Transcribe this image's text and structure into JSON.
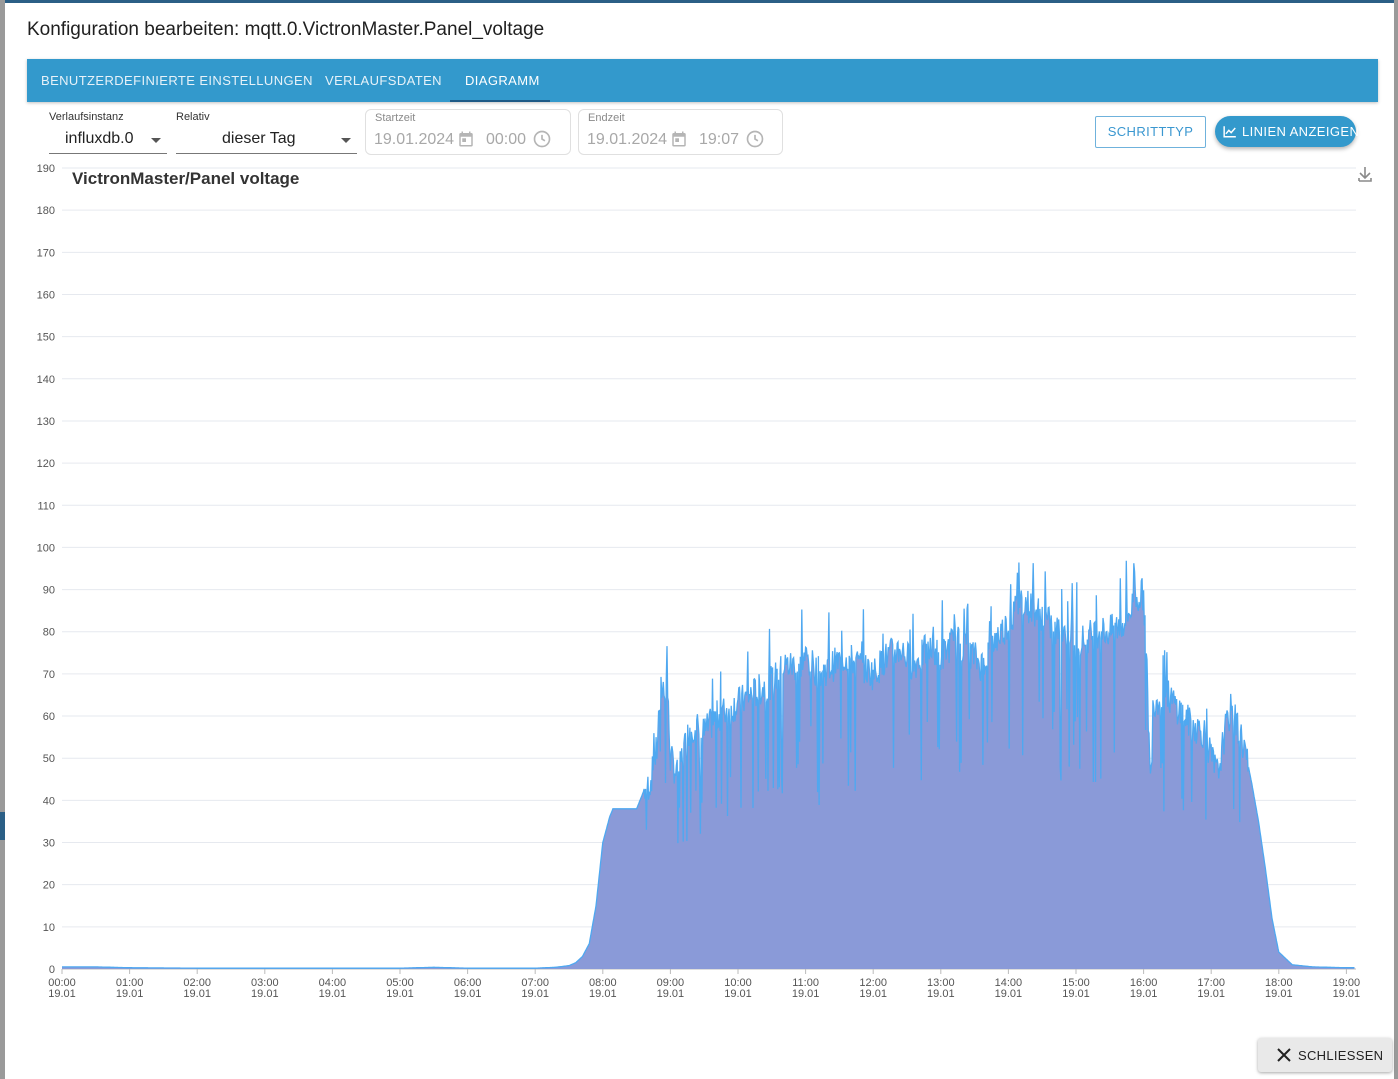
{
  "dialog": {
    "title": "Konfiguration bearbeiten: mqtt.0.VictronMaster.Panel_voltage"
  },
  "tabs": [
    {
      "label": "BENUTZERDEFINIERTE EINSTELLUNGEN",
      "active": false
    },
    {
      "label": "VERLAUFSDATEN",
      "active": false
    },
    {
      "label": "DIAGRAMM",
      "active": true
    }
  ],
  "controls": {
    "instance": {
      "label": "Verlaufsinstanz",
      "value": "influxdb.0"
    },
    "relative": {
      "label": "Relativ",
      "value": "dieser Tag"
    },
    "start": {
      "label": "Startzeit",
      "date": "19.01.2024",
      "time": "00:00"
    },
    "end": {
      "label": "Endzeit",
      "date": "19.01.2024",
      "time": "19:07"
    },
    "font_button": "SCHRITTTYP",
    "lines_button": "LINIEN ANZEIGEN"
  },
  "footer": {
    "close_label": "SCHLIESSEN"
  },
  "colors": {
    "accent": "#3399cc",
    "series_line": "#4fa8f0",
    "series_fill": "#8a9ad8"
  },
  "icons": [
    "calendar-icon",
    "clock-icon",
    "chart-line-icon",
    "download-icon",
    "close-icon",
    "chevron-down-icon"
  ],
  "chart_data": {
    "type": "area",
    "title": "VictronMaster/Panel voltage",
    "xlabel": "",
    "ylabel": "",
    "ylim": [
      0,
      190
    ],
    "y_ticks": [
      0,
      10,
      20,
      30,
      40,
      50,
      60,
      70,
      80,
      90,
      100,
      110,
      120,
      130,
      140,
      150,
      160,
      170,
      180,
      190
    ],
    "x_ticks": [
      {
        "time": "00:00",
        "date": "19.01"
      },
      {
        "time": "01:00",
        "date": "19.01"
      },
      {
        "time": "02:00",
        "date": "19.01"
      },
      {
        "time": "03:00",
        "date": "19.01"
      },
      {
        "time": "04:00",
        "date": "19.01"
      },
      {
        "time": "05:00",
        "date": "19.01"
      },
      {
        "time": "06:00",
        "date": "19.01"
      },
      {
        "time": "07:00",
        "date": "19.01"
      },
      {
        "time": "08:00",
        "date": "19.01"
      },
      {
        "time": "09:00",
        "date": "19.01"
      },
      {
        "time": "10:00",
        "date": "19.01"
      },
      {
        "time": "11:00",
        "date": "19.01"
      },
      {
        "time": "12:00",
        "date": "19.01"
      },
      {
        "time": "13:00",
        "date": "19.01"
      },
      {
        "time": "14:00",
        "date": "19.01"
      },
      {
        "time": "15:00",
        "date": "19.01"
      },
      {
        "time": "16:00",
        "date": "19.01"
      },
      {
        "time": "17:00",
        "date": "19.01"
      },
      {
        "time": "18:00",
        "date": "19.01"
      },
      {
        "time": "19:00",
        "date": "19.01"
      }
    ],
    "x_unit": "hours since 00:00 on 19.01.2024",
    "xlim": [
      0,
      19.12
    ],
    "grid": true,
    "series": [
      {
        "name": "VictronMaster/Panel voltage",
        "x": [
          0,
          0.5,
          1,
          2,
          3,
          4,
          5,
          5.5,
          6,
          7,
          7.3,
          7.5,
          7.6,
          7.7,
          7.8,
          7.9,
          8.0,
          8.1,
          8.15,
          8.2,
          8.3,
          8.5,
          8.6,
          8.7,
          8.8,
          8.85,
          8.95,
          9.0,
          9.1,
          9.2,
          9.3,
          9.5,
          9.7,
          9.9,
          10.1,
          10.3,
          10.5,
          10.7,
          10.9,
          11.0,
          11.2,
          11.4,
          11.6,
          11.8,
          12.0,
          12.2,
          12.4,
          12.6,
          12.8,
          13.0,
          13.2,
          13.4,
          13.6,
          13.8,
          14.0,
          14.2,
          14.3,
          14.5,
          14.7,
          14.9,
          15.1,
          15.3,
          15.5,
          15.7,
          15.9,
          16.0,
          16.05,
          16.1,
          16.15,
          16.2,
          16.3,
          16.5,
          16.7,
          16.9,
          17.0,
          17.1,
          17.2,
          17.3,
          17.4,
          17.5,
          17.6,
          17.7,
          17.8,
          17.9,
          18.0,
          18.2,
          18.5,
          19.0,
          19.12
        ],
        "y": [
          0.5,
          0.5,
          0.3,
          0.2,
          0.2,
          0.2,
          0.2,
          0.4,
          0.2,
          0.2,
          0.4,
          0.8,
          1.5,
          3,
          6,
          15,
          30,
          36,
          38,
          38,
          38,
          38,
          42,
          44,
          52,
          66,
          68,
          50,
          46,
          52,
          58,
          56,
          60,
          62,
          64,
          66,
          68,
          72,
          72,
          74,
          70,
          72,
          74,
          72,
          70,
          74,
          76,
          72,
          76,
          74,
          78,
          76,
          72,
          78,
          82,
          88,
          86,
          84,
          80,
          80,
          78,
          80,
          80,
          82,
          88,
          89,
          70,
          44,
          62,
          64,
          66,
          62,
          58,
          56,
          50,
          46,
          56,
          62,
          57,
          52,
          44,
          35,
          24,
          12,
          4,
          1,
          0.5,
          0.3,
          0.3
        ]
      }
    ]
  }
}
